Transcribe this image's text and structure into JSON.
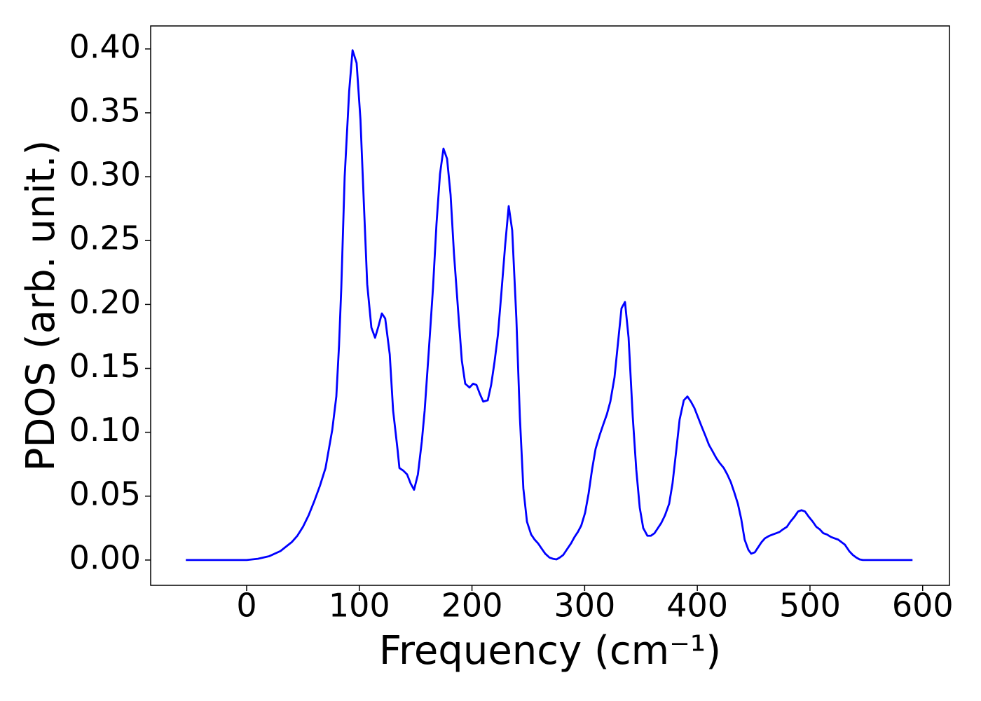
{
  "chart_data": {
    "type": "line",
    "x_label": "Frequency (cm⁻¹)",
    "y_label": "PDOS (arb. unit.)",
    "color": "#0000ff",
    "xlim": [
      -85.2,
      623.8
    ],
    "ylim": [
      -0.0198,
      0.418
    ],
    "xticks": [
      0,
      100,
      200,
      300,
      400,
      500,
      600
    ],
    "yticks": [
      {
        "value": 0,
        "label": "0.00"
      },
      {
        "value": 0.05,
        "label": "0.05"
      },
      {
        "value": 0.1,
        "label": "0.10"
      },
      {
        "value": 0.15,
        "label": "0.15"
      },
      {
        "value": 0.2,
        "label": "0.20"
      },
      {
        "value": 0.25,
        "label": "0.25"
      },
      {
        "value": 0.3,
        "label": "0.30"
      },
      {
        "value": 0.35,
        "label": "0.35"
      },
      {
        "value": 0.4,
        "label": "0.40"
      }
    ],
    "x": [
      -54,
      -40,
      -20,
      0,
      10,
      20,
      30,
      40,
      45,
      50,
      55,
      60,
      65,
      70,
      73,
      76,
      79.6,
      82,
      84,
      87,
      91,
      94,
      97.6,
      101,
      104,
      107,
      110.7,
      114,
      117,
      120,
      123,
      127,
      130,
      134,
      135.6,
      139,
      142.4,
      145.5,
      148.6,
      152,
      155.5,
      158,
      161.7,
      165.4,
      168.5,
      171.6,
      174.7,
      177.9,
      181,
      184,
      187.8,
      191,
      194,
      197.8,
      201,
      204,
      207,
      210,
      214,
      217,
      220,
      223,
      226,
      229.5,
      232.6,
      235.7,
      239.4,
      242.5,
      245.6,
      248.8,
      252.5,
      255.6,
      258.7,
      261.8,
      265,
      268.7,
      271.8,
      275,
      278,
      281,
      284.8,
      287.9,
      291,
      294,
      297,
      300.4,
      303.5,
      306.6,
      309.7,
      313.4,
      316.5,
      319.7,
      322.8,
      326.5,
      329.6,
      332.7,
      335.8,
      339,
      342.7,
      345.8,
      348.9,
      352,
      355.7,
      358.8,
      362,
      365,
      368,
      371.3,
      375,
      378,
      381.2,
      384.3,
      388,
      391.2,
      394.3,
      397.4,
      400.5,
      403.6,
      407.3,
      410.4,
      413.6,
      416.7,
      419.8,
      423.5,
      426.6,
      429.7,
      432.8,
      436,
      439,
      442,
      445.3,
      447.8,
      451,
      454,
      457,
      460,
      464,
      467,
      470,
      473,
      476,
      479.5,
      482.6,
      486.3,
      489.4,
      492.5,
      495.6,
      498.8,
      502.5,
      505.6,
      508.7,
      511.8,
      515,
      518.7,
      521.8,
      525,
      528,
      531,
      534.8,
      538,
      541,
      544,
      547,
      591
    ],
    "values": [
      0,
      0,
      0,
      0,
      0.001,
      0.003,
      0.007,
      0.014,
      0.019,
      0.026,
      0.035,
      0.046,
      0.058,
      0.072,
      0.087,
      0.102,
      0.128,
      0.168,
      0.213,
      0.3,
      0.367,
      0.399,
      0.389,
      0.345,
      0.28,
      0.216,
      0.182,
      0.174,
      0.183,
      0.193,
      0.189,
      0.161,
      0.117,
      0.086,
      0.072,
      0.07,
      0.067,
      0.06,
      0.055,
      0.067,
      0.093,
      0.117,
      0.164,
      0.213,
      0.263,
      0.302,
      0.322,
      0.314,
      0.286,
      0.24,
      0.194,
      0.156,
      0.138,
      0.135,
      0.138,
      0.137,
      0.13,
      0.124,
      0.125,
      0.137,
      0.155,
      0.176,
      0.208,
      0.247,
      0.277,
      0.258,
      0.189,
      0.112,
      0.056,
      0.03,
      0.02,
      0.016,
      0.013,
      0.009,
      0.005,
      0.002,
      0.001,
      0.0005,
      0.002,
      0.004,
      0.009,
      0.013,
      0.018,
      0.022,
      0.027,
      0.037,
      0.052,
      0.071,
      0.087,
      0.098,
      0.106,
      0.114,
      0.124,
      0.143,
      0.17,
      0.197,
      0.202,
      0.174,
      0.112,
      0.071,
      0.041,
      0.025,
      0.019,
      0.019,
      0.021,
      0.025,
      0.029,
      0.035,
      0.044,
      0.06,
      0.085,
      0.11,
      0.125,
      0.128,
      0.124,
      0.119,
      0.112,
      0.105,
      0.097,
      0.09,
      0.085,
      0.08,
      0.076,
      0.072,
      0.067,
      0.061,
      0.053,
      0.044,
      0.032,
      0.016,
      0.008,
      0.005,
      0.006,
      0.01,
      0.014,
      0.017,
      0.019,
      0.02,
      0.021,
      0.022,
      0.024,
      0.026,
      0.03,
      0.034,
      0.038,
      0.039,
      0.038,
      0.034,
      0.03,
      0.026,
      0.024,
      0.021,
      0.02,
      0.018,
      0.017,
      0.016,
      0.014,
      0.012,
      0.007,
      0.004,
      0.002,
      0.0005,
      0,
      0
    ]
  }
}
